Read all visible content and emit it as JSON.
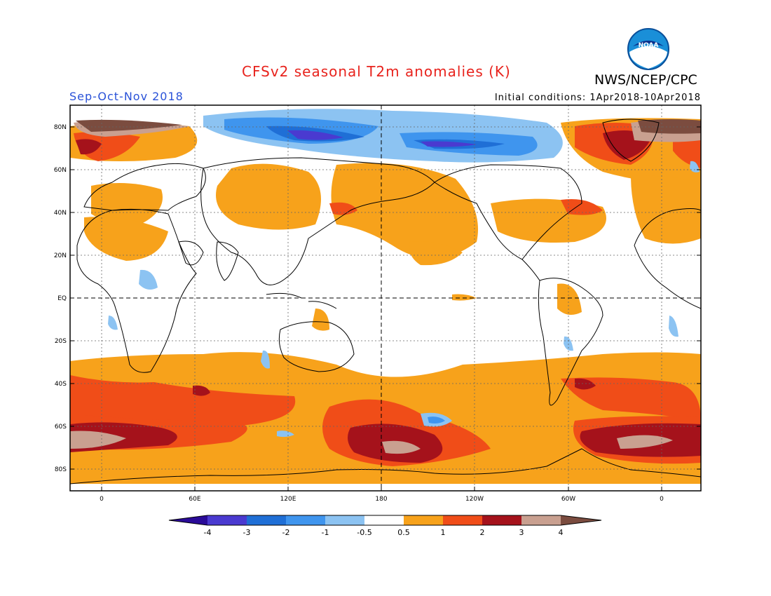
{
  "header": {
    "title": "CFSv2 seasonal T2m anomalies (K)",
    "agency": "NWS/NCEP/CPC",
    "season": "Sep-Oct-Nov 2018",
    "initial_conditions": "Initial conditions: 1Apr2018-10Apr2018",
    "logo_text": "NOAA"
  },
  "map": {
    "lat_labels": [
      "80N",
      "60N",
      "40N",
      "20N",
      "EQ",
      "20S",
      "40S",
      "60S",
      "80S"
    ],
    "lon_labels": [
      "0",
      "60E",
      "120E",
      "180",
      "120W",
      "60W",
      "0"
    ]
  },
  "colorbar": {
    "labels": [
      "-4",
      "-3",
      "-2",
      "-1",
      "-0.5",
      "0.5",
      "1",
      "2",
      "3",
      "4"
    ],
    "colors": [
      "#2a0b98",
      "#4a3ad0",
      "#1f6fd6",
      "#3f95ee",
      "#8cc3f2",
      "#ffffff",
      "#f7a21b",
      "#f04d18",
      "#a5121b",
      "#c9a090",
      "#7b4c3f"
    ]
  },
  "palette": {
    "ocean_bg": "#ffffff",
    "warm1": "#f7a21b",
    "warm2": "#f04d18",
    "warm3": "#a5121b",
    "warm4": "#c9a090",
    "warm5": "#7b4c3f",
    "cool1": "#8cc3f2",
    "cool2": "#3f95ee",
    "cool3": "#1f6fd6",
    "cool4": "#4a3ad0"
  }
}
